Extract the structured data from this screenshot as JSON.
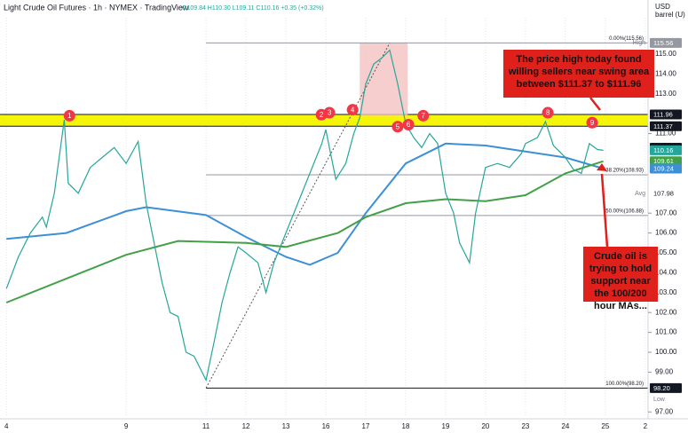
{
  "chart_data": {
    "type": "line",
    "title": "Light Crude Oil Futures · 1h · NYMEX · TradingView",
    "ohlc": "O109.84 H110.30 L109.11 C110.16 +0.35 (+0.32%)",
    "y_axis_label": [
      "USD",
      "barrel (U)"
    ],
    "xlim": [
      -0.16,
      16.07
    ],
    "ylim": [
      95.94,
      117.72
    ],
    "xticks": [
      {
        "value": 0,
        "label": "4"
      },
      {
        "value": 3,
        "label": "9"
      },
      {
        "value": 5,
        "label": "11"
      },
      {
        "value": 6,
        "label": "12"
      },
      {
        "value": 7,
        "label": "13"
      },
      {
        "value": 8,
        "label": "16"
      },
      {
        "value": 9,
        "label": "17"
      },
      {
        "value": 10,
        "label": "18"
      },
      {
        "value": 11,
        "label": "19"
      },
      {
        "value": 12,
        "label": "20"
      },
      {
        "value": 13,
        "label": "23"
      },
      {
        "value": 14,
        "label": "24"
      },
      {
        "value": 15,
        "label": "25"
      },
      {
        "value": 16,
        "label": "2"
      }
    ],
    "yticks": [
      {
        "value": 97,
        "label": "97.00"
      },
      {
        "value": 99,
        "label": "99.00"
      },
      {
        "value": 100,
        "label": "100.00"
      },
      {
        "value": 101,
        "label": "101.00"
      },
      {
        "value": 102,
        "label": "102.00"
      },
      {
        "value": 103,
        "label": "103.00"
      },
      {
        "value": 104,
        "label": "104.00"
      },
      {
        "value": 105,
        "label": "105.00"
      },
      {
        "value": 106,
        "label": "106.00"
      },
      {
        "value": 107,
        "label": "107.00"
      },
      {
        "value": 111,
        "label": "111.00"
      },
      {
        "value": 113,
        "label": "113.00"
      },
      {
        "value": 114,
        "label": "114.00"
      },
      {
        "value": 115,
        "label": "115.00"
      }
    ],
    "grid": true,
    "series": [
      {
        "color": "#26a69a",
        "x": [
          0,
          0.3,
          0.6,
          0.9,
          1.0,
          1.2,
          1.45,
          1.55,
          1.8,
          2.1,
          2.4,
          2.7,
          3.0,
          3.3,
          3.5,
          3.7,
          3.9,
          4.1,
          4.3,
          4.5,
          4.7,
          4.9,
          5.0,
          5.2,
          5.4,
          5.6,
          5.8,
          6.0,
          6.3,
          6.5,
          6.7,
          7.0,
          7.3,
          7.6,
          7.9,
          8.0,
          8.1,
          8.25,
          8.5,
          8.7,
          8.85,
          9.0,
          9.2,
          9.4,
          9.6,
          9.8,
          10.0,
          10.2,
          10.4,
          10.6,
          10.8,
          11.0,
          11.2,
          11.35,
          11.6,
          11.75,
          12.0,
          12.3,
          12.6,
          12.9,
          13.0,
          13.3,
          13.5,
          13.7,
          14.0,
          14.2,
          14.4,
          14.6,
          14.8,
          14.95
        ],
        "values": [
          103.2,
          104.8,
          106.0,
          106.8,
          106.3,
          108.0,
          111.7,
          108.5,
          108.0,
          109.3,
          109.8,
          110.3,
          109.5,
          110.6,
          107.5,
          105.5,
          103.5,
          102.0,
          101.8,
          100.0,
          99.8,
          99.0,
          98.6,
          100.5,
          102.5,
          104.0,
          105.3,
          105.0,
          104.5,
          103.0,
          104.5,
          106.0,
          107.5,
          109.0,
          110.5,
          111.2,
          110.2,
          108.7,
          109.5,
          111.0,
          111.8,
          113.5,
          114.5,
          114.8,
          115.2,
          113.5,
          111.5,
          110.8,
          110.3,
          111.0,
          110.5,
          108.0,
          107.0,
          105.5,
          104.5,
          107.0,
          109.3,
          109.5,
          109.3,
          110.0,
          110.5,
          110.8,
          111.6,
          110.4,
          109.8,
          109.2,
          109.0,
          110.5,
          110.2,
          110.16
        ]
      },
      {
        "color": "#3d8fd6",
        "x": [
          0,
          1.5,
          3,
          3.5,
          5,
          6,
          7,
          7.6,
          8.3,
          9,
          10,
          11,
          12,
          13,
          14,
          14.95
        ],
        "values": [
          105.7,
          106.0,
          107.1,
          107.3,
          106.9,
          105.8,
          104.8,
          104.4,
          105.0,
          107.0,
          109.5,
          110.5,
          110.4,
          110.1,
          109.8,
          109.24
        ]
      },
      {
        "color": "#43a047",
        "x": [
          0,
          1.5,
          3,
          4.3,
          6,
          7,
          8.3,
          9,
          10,
          11,
          12,
          13,
          14,
          14.95
        ],
        "values": [
          102.5,
          103.7,
          104.9,
          105.6,
          105.5,
          105.3,
          106.0,
          106.8,
          107.5,
          107.7,
          107.6,
          107.9,
          109.0,
          109.61
        ]
      }
    ],
    "band": {
      "values": [
        111.37,
        111.96
      ],
      "color": "#f5f50a"
    },
    "highlight": {
      "x": [
        8.85,
        10.05
      ],
      "y": [
        111.9,
        115.56
      ],
      "color": "#f4c2c2"
    },
    "trendline": {
      "x": [
        5.0,
        9.6
      ],
      "y": [
        98.2,
        115.56
      ]
    },
    "fib_levels": [
      {
        "value": 115.56,
        "label": "0.00%(115.56)"
      },
      {
        "value": 108.93,
        "label": "38.20%(108.93)"
      },
      {
        "value": 106.88,
        "label": "50.00%(106.88)"
      },
      {
        "value": 98.2,
        "label": "100.00%(98.20)"
      }
    ],
    "price_labels": [
      {
        "value": 115.56,
        "color": "#9598a1",
        "note": "High",
        "note_position": "left"
      },
      {
        "value": 111.96,
        "color": "#131722"
      },
      {
        "value": 111.37,
        "color": "#131722"
      },
      {
        "value": 110.29,
        "color": "#131722"
      },
      {
        "value": 110.16,
        "color": "#26a69a"
      },
      {
        "value": 109.61,
        "color": "#43a047"
      },
      {
        "value": 109.24,
        "color": "#3d8fd6"
      },
      {
        "value": 107.98,
        "color": "#ffffff",
        "note": "Avg",
        "note_position": "left"
      },
      {
        "value": 98.2,
        "label": "98.20",
        "color": "#131722",
        "note": "Low",
        "note_position": "below"
      }
    ],
    "pins": [
      {
        "label": "1",
        "x": 1.58,
        "y": 111.9
      },
      {
        "label": "2",
        "x": 7.89,
        "y": 111.95
      },
      {
        "label": "3",
        "x": 8.09,
        "y": 112.05
      },
      {
        "label": "4",
        "x": 8.67,
        "y": 112.2
      },
      {
        "label": "5",
        "x": 9.8,
        "y": 111.35
      },
      {
        "label": "6",
        "x": 10.07,
        "y": 111.45
      },
      {
        "label": "7",
        "x": 10.44,
        "y": 111.9
      },
      {
        "label": "8",
        "x": 13.56,
        "y": 112.05
      },
      {
        "label": "9",
        "x": 14.67,
        "y": 111.55
      }
    ],
    "annotations": [
      {
        "text": "The price high today found willing sellers near swing area between $111.37 to $111.96",
        "color": "#e0201b"
      },
      {
        "text": "Crude oil is trying to hold support near the 100/200 hour MAs...",
        "color": "#e0201b"
      }
    ]
  }
}
